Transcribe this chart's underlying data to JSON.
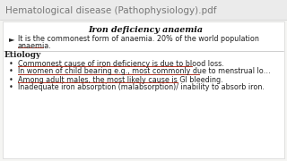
{
  "bg_color": "#f5f5f3",
  "header_bg": "#f5f5f3",
  "header_text": "Hematological disease (Pathophysiology).pdf",
  "header_font_size": 7.5,
  "header_text_color": "#777777",
  "content_bg": "#ffffff",
  "content_border": "#cccccc",
  "title": "Iron deficiency anaemia",
  "title_font_size": 6.8,
  "title_color": "#111111",
  "bullet_intro_marker": "►",
  "bullet_intro_text": "It is the commonest form of anaemia. 20% of the world population",
  "bullet_intro_text2": "anaemia.",
  "etiology_label": "Etiology",
  "etiology_font_size": 6.5,
  "bullets": [
    "Commonest cause of iron deficiency is due to blood loss.",
    "In women of child bearing e.g., most commonly due to menstrual lo…",
    "Among adult males, the most likely cause is GI bleeding.",
    "Inadequate iron absorption (malabsorption)/ inability to absorb iron."
  ],
  "text_font_size": 5.8,
  "underline_color": "#b03020",
  "separator_color": "#aaaaaa",
  "text_color": "#222222"
}
